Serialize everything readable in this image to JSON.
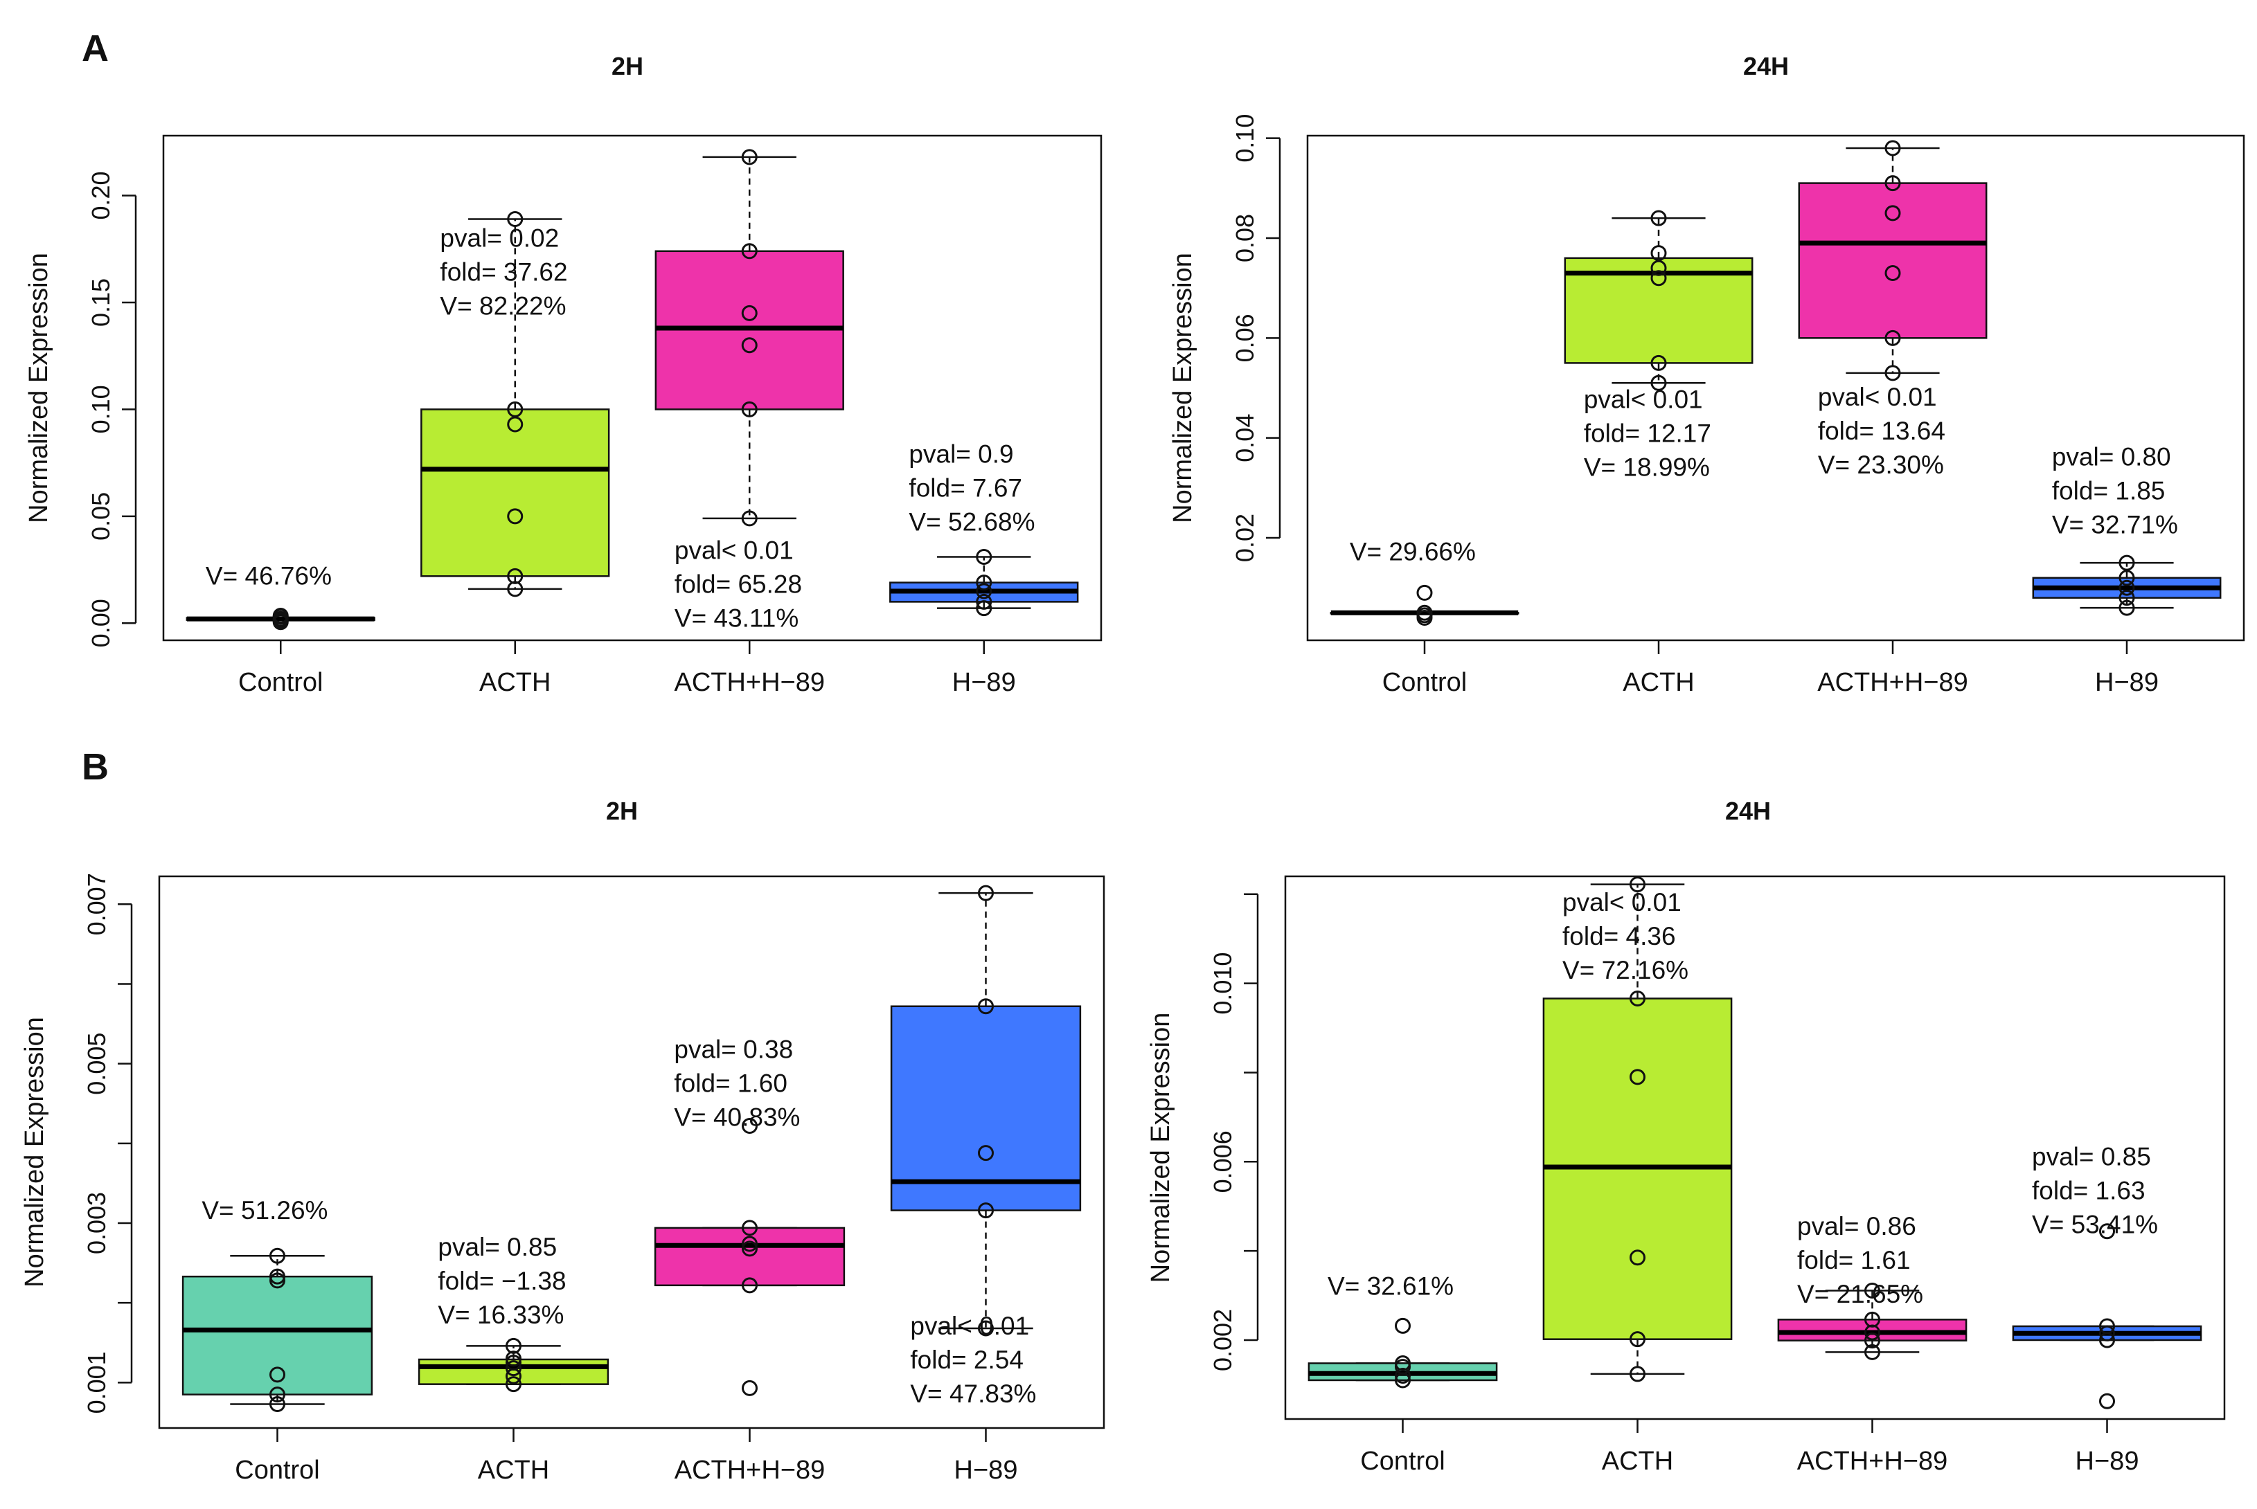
{
  "panel_labels": [
    "A",
    "B"
  ],
  "chart_data": [
    {
      "id": "A-2H",
      "panel": "A",
      "type": "box",
      "title": "2H",
      "xlabel": "",
      "ylabel": "Normalized Expression",
      "ylim": [
        -0.008,
        0.228
      ],
      "yticks": [
        0.0,
        0.05,
        0.1,
        0.15,
        0.2
      ],
      "ytick_labels": [
        "0.00",
        "0.05",
        "0.10",
        "0.15",
        "0.20"
      ],
      "categories": [
        "Control",
        "ACTH",
        "ACTH+H−89",
        "H−89"
      ],
      "colors": [
        "#48cfa0",
        "#b8ec33",
        "#ee33aa",
        "#3f78ff"
      ],
      "boxes": [
        {
          "q1": 0.0015,
          "median": 0.002,
          "q3": 0.0025,
          "whisker_low": 0.0015,
          "whisker_high": 0.0025,
          "points": [
            0.0005,
            0.001,
            0.0015,
            0.002,
            0.003,
            0.0035
          ],
          "annotation": [
            "V= 46.76%"
          ],
          "annot_anchor": 0.018
        },
        {
          "q1": 0.022,
          "median": 0.072,
          "q3": 0.1,
          "whisker_low": 0.016,
          "whisker_high": 0.189,
          "points": [
            0.016,
            0.022,
            0.05,
            0.093,
            0.1,
            0.189
          ],
          "annotation": [
            "pval= 0.02",
            "fold= 37.62",
            "V= 82.22%"
          ],
          "annot_anchor": 0.176
        },
        {
          "q1": 0.1,
          "median": 0.138,
          "q3": 0.174,
          "whisker_low": 0.049,
          "whisker_high": 0.218,
          "points": [
            0.049,
            0.1,
            0.13,
            0.145,
            0.174,
            0.218
          ],
          "annotation": [
            "pval< 0.01",
            "fold= 65.28",
            "V= 43.11%"
          ],
          "annot_anchor": 0.03
        },
        {
          "q1": 0.01,
          "median": 0.015,
          "q3": 0.019,
          "whisker_low": 0.007,
          "whisker_high": 0.031,
          "points": [
            0.007,
            0.01,
            0.015,
            0.019,
            0.031
          ],
          "annotation": [
            "pval= 0.9",
            "fold= 7.67",
            "V= 52.68%"
          ],
          "annot_anchor": 0.075
        }
      ]
    },
    {
      "id": "A-24H",
      "panel": "A",
      "type": "box",
      "title": "24H",
      "xlabel": "",
      "ylabel": "Normalized Expression",
      "ylim": [
        -0.0005,
        0.1005
      ],
      "yticks": [
        0.02,
        0.04,
        0.06,
        0.08,
        0.1
      ],
      "ytick_labels": [
        "0.02",
        "0.04",
        "0.06",
        "0.08",
        "0.10"
      ],
      "categories": [
        "Control",
        "ACTH",
        "ACTH+H−89",
        "H−89"
      ],
      "colors": [
        "#48cfa0",
        "#b8ec33",
        "#ee33aa",
        "#3f78ff"
      ],
      "boxes": [
        {
          "q1": 0.005,
          "median": 0.005,
          "q3": 0.005,
          "whisker_low": 0.005,
          "whisker_high": 0.005,
          "points": [
            0.004,
            0.0045,
            0.005,
            0.009
          ],
          "annotation": [
            "V= 29.66%"
          ],
          "annot_anchor": 0.0155
        },
        {
          "q1": 0.055,
          "median": 0.073,
          "q3": 0.076,
          "whisker_low": 0.051,
          "whisker_high": 0.084,
          "points": [
            0.051,
            0.055,
            0.072,
            0.074,
            0.077,
            0.084
          ],
          "annotation": [
            "pval< 0.01",
            "fold= 12.17",
            "V= 18.99%"
          ],
          "annot_anchor": 0.046
        },
        {
          "q1": 0.06,
          "median": 0.079,
          "q3": 0.091,
          "whisker_low": 0.053,
          "whisker_high": 0.098,
          "points": [
            0.053,
            0.06,
            0.073,
            0.085,
            0.091,
            0.098
          ],
          "annotation": [
            "pval< 0.01",
            "fold= 13.64",
            "V= 23.30%"
          ],
          "annot_anchor": 0.0465
        },
        {
          "q1": 0.008,
          "median": 0.01,
          "q3": 0.012,
          "whisker_low": 0.006,
          "whisker_high": 0.015,
          "points": [
            0.006,
            0.008,
            0.01,
            0.012,
            0.015
          ],
          "annotation": [
            "pval= 0.80",
            "fold= 1.85",
            "V= 32.71%"
          ],
          "annot_anchor": 0.0345
        }
      ]
    },
    {
      "id": "B-2H",
      "panel": "B",
      "type": "box",
      "title": "2H",
      "xlabel": "",
      "ylabel": "Normalized Expression",
      "ylim": [
        0.00043,
        0.00735
      ],
      "yticks": [
        0.001,
        0.002,
        0.003,
        0.004,
        0.005,
        0.006,
        0.007
      ],
      "ytick_labels": [
        "0.001",
        "",
        "0.003",
        "",
        "0.005",
        "",
        "0.007"
      ],
      "categories": [
        "Control",
        "ACTH",
        "ACTH+H−89",
        "H−89"
      ],
      "colors": [
        "#66d1ae",
        "#b8ec33",
        "#ee33aa",
        "#3f78ff"
      ],
      "boxes": [
        {
          "q1": 0.00085,
          "median": 0.00166,
          "q3": 0.00233,
          "whisker_low": 0.00073,
          "whisker_high": 0.00259,
          "points": [
            0.00073,
            0.00085,
            0.0011,
            0.00228,
            0.00233,
            0.00259
          ],
          "annotation": [
            "V= 51.26%"
          ],
          "annot_anchor": 0.00305
        },
        {
          "q1": 0.00098,
          "median": 0.0012,
          "q3": 0.00129,
          "whisker_low": 0.00098,
          "whisker_high": 0.00146,
          "points": [
            0.00098,
            0.00108,
            0.00118,
            0.00125,
            0.0013,
            0.00146
          ],
          "annotation": [
            "pval= 0.85",
            "fold= −1.38",
            "V= 16.33%"
          ],
          "annot_anchor": 0.00259
        },
        {
          "q1": 0.00222,
          "median": 0.00272,
          "q3": 0.00294,
          "whisker_low": 0.00222,
          "whisker_high": 0.00294,
          "points": [
            0.00093,
            0.00222,
            0.00268,
            0.00274,
            0.00294,
            0.00422
          ],
          "annotation": [
            "pval= 0.38",
            "fold= 1.60",
            "V= 40.83%"
          ],
          "annot_anchor": 0.00507
        },
        {
          "q1": 0.00316,
          "median": 0.00352,
          "q3": 0.00572,
          "whisker_low": 0.00168,
          "whisker_high": 0.00714,
          "points": [
            0.00168,
            0.00316,
            0.00388,
            0.00572,
            0.00714
          ],
          "annotation": [
            "pval< 0.01",
            "fold= 2.54",
            "V= 47.83%"
          ],
          "annot_anchor": 0.0016
        }
      ]
    },
    {
      "id": "B-24H",
      "panel": "B",
      "type": "box",
      "title": "24H",
      "xlabel": "",
      "ylabel": "Normalized Expression",
      "ylim": [
        0.00023,
        0.0124
      ],
      "yticks": [
        0.002,
        0.004,
        0.006,
        0.008,
        0.01,
        0.012
      ],
      "ytick_labels": [
        "0.002",
        "",
        "0.006",
        "",
        "0.010",
        ""
      ],
      "categories": [
        "Control",
        "ACTH",
        "ACTH+H−89",
        "H−89"
      ],
      "colors": [
        "#66d1ae",
        "#b8ec33",
        "#ee33aa",
        "#3f78ff"
      ],
      "boxes": [
        {
          "q1": 0.0011,
          "median": 0.00125,
          "q3": 0.00148,
          "whisker_low": 0.0011,
          "whisker_high": 0.00148,
          "points": [
            0.0011,
            0.0012,
            0.0014,
            0.00148,
            0.00232
          ],
          "annotation": [
            "V= 32.61%"
          ],
          "annot_anchor": 0.00302
        },
        {
          "q1": 0.00202,
          "median": 0.00588,
          "q3": 0.00966,
          "whisker_low": 0.00124,
          "whisker_high": 0.01222,
          "points": [
            0.00124,
            0.00202,
            0.00385,
            0.0079,
            0.00966,
            0.01222
          ],
          "annotation": [
            "pval< 0.01",
            "fold= 4.36",
            "V= 72.16%"
          ],
          "annot_anchor": 0.01162
        },
        {
          "q1": 0.00199,
          "median": 0.00217,
          "q3": 0.00246,
          "whisker_low": 0.00173,
          "whisker_high": 0.00311,
          "points": [
            0.00173,
            0.00199,
            0.00217,
            0.00246,
            0.00311
          ],
          "annotation": [
            "pval= 0.86",
            "fold= 1.61",
            "V= 21.65%"
          ],
          "annot_anchor": 0.00436
        },
        {
          "q1": 0.002,
          "median": 0.00215,
          "q3": 0.00231,
          "whisker_low": 0.002,
          "whisker_high": 0.00231,
          "points": [
            0.00063,
            0.002,
            0.00215,
            0.00231,
            0.00444
          ],
          "annotation": [
            "pval= 0.85",
            "fold= 1.63",
            "V= 53.41%"
          ],
          "annot_anchor": 0.00592
        }
      ]
    }
  ]
}
